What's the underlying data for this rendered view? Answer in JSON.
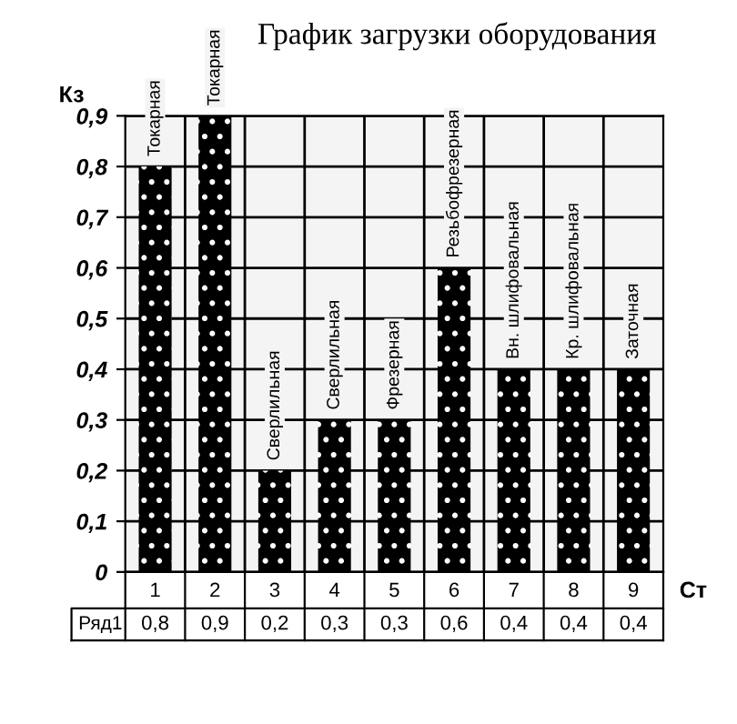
{
  "chart_data": {
    "type": "bar",
    "title": "График загрузки оборудования",
    "xlabel": "Ст",
    "ylabel": "Кз",
    "categories": [
      "1",
      "2",
      "3",
      "4",
      "5",
      "6",
      "7",
      "8",
      "9"
    ],
    "series": [
      {
        "name": "Ряд1",
        "color": "#000000",
        "values": [
          0.8,
          0.9,
          0.2,
          0.3,
          0.3,
          0.6,
          0.4,
          0.4,
          0.4
        ],
        "value_labels": [
          "0,8",
          "0,9",
          "0,2",
          "0,3",
          "0,3",
          "0,6",
          "0,4",
          "0,4",
          "0,4"
        ]
      }
    ],
    "ylim": [
      0,
      0.9
    ],
    "yticks": [
      0,
      {
        "value": 0.1,
        "label": "0,1"
      },
      {
        "value": 0.2,
        "label": "0,2"
      },
      {
        "value": 0.3,
        "label": "0,3"
      },
      {
        "value": 0.4,
        "label": "0,4"
      },
      {
        "value": 0.5,
        "label": "0,5"
      },
      {
        "value": 0.6,
        "label": "0,6"
      },
      {
        "value": 0.7,
        "label": "0,7"
      },
      {
        "value": 0.8,
        "label": "0,8"
      },
      {
        "value": 0.9,
        "label": "0,9"
      }
    ],
    "grid": "y",
    "annotations": [
      {
        "text": "Токарная",
        "x": "1",
        "y": 0.8
      },
      {
        "text": "Токарная",
        "x": "2",
        "y": 0.9
      },
      {
        "text": "Сверлильная",
        "x": "3",
        "y": 0.2
      },
      {
        "text": "Сверлильная",
        "x": "4",
        "y": 0.3
      },
      {
        "text": "Фрезерная",
        "x": "5",
        "y": 0.3
      },
      {
        "text": "Резьбофрезерная",
        "x": "6",
        "y": 0.6
      },
      {
        "text": "Вн. шлифовальная",
        "x": "7",
        "y": 0.4
      },
      {
        "text": "Кр. шлифовальная",
        "x": "8",
        "y": 0.4
      },
      {
        "text": "Заточная",
        "x": "9",
        "y": 0.4
      }
    ]
  }
}
